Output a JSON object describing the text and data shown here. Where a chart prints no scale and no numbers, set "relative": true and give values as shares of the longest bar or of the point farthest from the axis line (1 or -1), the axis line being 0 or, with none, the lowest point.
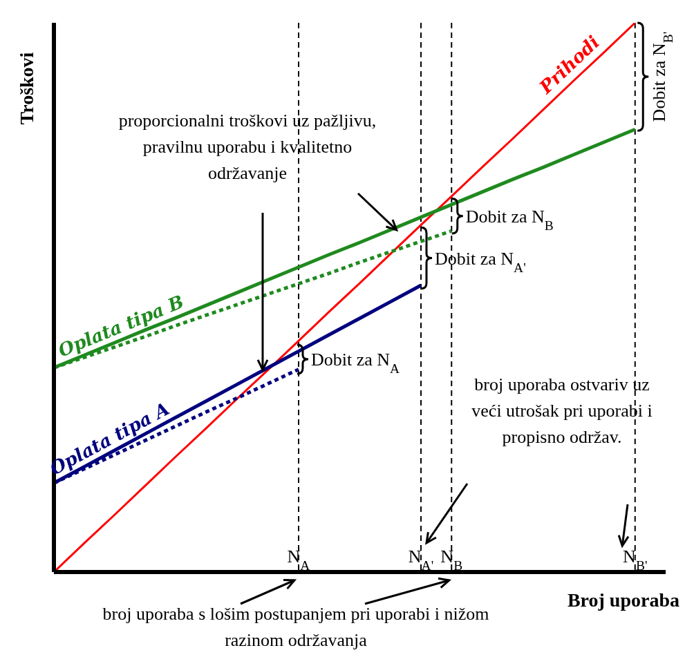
{
  "chart_data": {
    "type": "line",
    "relative": true,
    "xlabel": "Broj uporaba",
    "ylabel": "Troškovi",
    "grid": "x",
    "legend": false,
    "marker": "none",
    "categories": [
      null,
      null,
      null,
      null,
      null,
      null,
      null,
      null,
      "N$_{A}$",
      null,
      null,
      null,
      "N$_{A'}$",
      "N$_{B}$",
      null,
      null,
      null,
      null,
      null,
      "N$_{B'}$",
      null
    ],
    "series": [
      {
        "name": "Prihodi",
        "color": "#ff0000",
        "line_style": "solid",
        "values": [
          0,
          0.053,
          0.105,
          0.158,
          0.211,
          0.263,
          0.316,
          0.368,
          0.421,
          0.474,
          0.526,
          0.579,
          0.632,
          0.684,
          0.737,
          0.789,
          0.842,
          0.895,
          0.947,
          1,
          null
        ]
      },
      {
        "name": "Oplata tipa B",
        "color": "#1f8a1f",
        "line_style": "solid",
        "values": [
          0.372,
          0.395,
          0.418,
          0.441,
          0.463,
          0.486,
          0.509,
          0.532,
          0.555,
          0.578,
          0.6,
          0.623,
          0.646,
          0.669,
          0.692,
          0.715,
          0.737,
          0.76,
          0.783,
          0.806,
          null
        ]
      },
      {
        "color": "#1f8a1f",
        "line_style": "dotted",
        "values": [
          0.372,
          0.391,
          0.41,
          0.429,
          0.449,
          0.468,
          0.487,
          0.506,
          0.525,
          0.544,
          0.564,
          0.583,
          0.602,
          0.621,
          null,
          null,
          null,
          null,
          null,
          null,
          null
        ]
      },
      {
        "name": "Oplata tipa A",
        "color": "#00007f",
        "line_style": "solid",
        "values": [
          0.162,
          0.192,
          0.222,
          0.252,
          0.282,
          0.312,
          0.342,
          0.372,
          0.402,
          0.432,
          0.462,
          0.492,
          0.522,
          null,
          null,
          null,
          null,
          null,
          null,
          null,
          null
        ]
      },
      {
        "color": "#00007f",
        "line_style": "dotted",
        "values": [
          0.162,
          0.188,
          0.214,
          0.24,
          0.266,
          0.292,
          0.317,
          0.343,
          0.369,
          null,
          null,
          null,
          null,
          null,
          null,
          null,
          null,
          null,
          null,
          null,
          null
        ]
      }
    ],
    "annotations": [
      "proporcionalni troškovi uz pažljivu, pravilnu uporabu i kvalitetno održavanje",
      "broj uporaba ostvariv uz veći utrošak pri uporabi i propisno održav.",
      "broj uporaba s lošim postupanjem pri uporabi i nižom razinom održavanja",
      "Dobit za N$_{A}$",
      "Dobit za N$_{A'}$",
      "Dobit za N$_{B}$",
      "Dobit za N$_{B'}$"
    ]
  }
}
